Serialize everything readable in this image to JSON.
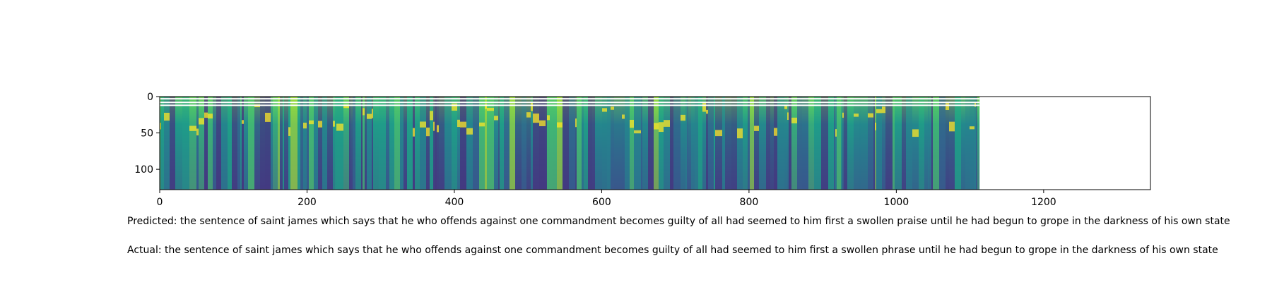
{
  "chart_data": {
    "type": "heatmap",
    "title": "",
    "xlabel": "",
    "ylabel": "",
    "xlim": [
      0,
      1345
    ],
    "ylim": [
      128,
      0
    ],
    "data_extent_x": [
      0,
      1113
    ],
    "y_inverted": true,
    "colormap": "viridis",
    "x_ticks": [
      0,
      200,
      400,
      600,
      800,
      1000,
      1200
    ],
    "y_ticks": [
      0,
      50,
      100
    ],
    "grid": false,
    "legend": "none"
  },
  "captions": {
    "predicted": "Predicted: the sentence of saint james which says that he who offends against one commandment becomes guilty of all had seemed to him first a swollen praise until he had begun to grope in the darkness of his own state",
    "actual": "Actual: the sentence of saint james which says that he who offends against one commandment becomes guilty of all had seemed to him first a swollen phrase until he had begun to grope in the darkness of his own state"
  }
}
